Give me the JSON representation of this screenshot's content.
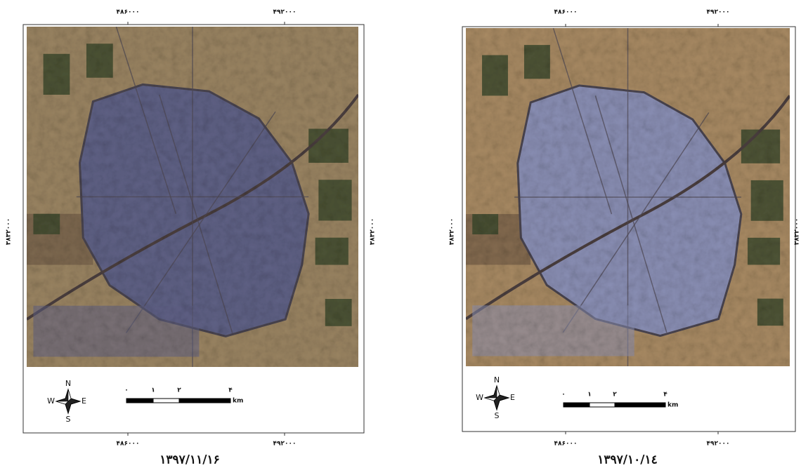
{
  "panels": [
    {
      "top_ticks": [
        "۴۸۶۰۰۰",
        "۴۹۲۰۰۰"
      ],
      "bottom_ticks": [
        "۴۸۶۰۰۰",
        "۴۹۲۰۰۰"
      ],
      "left_tick": "۳۸۳۲۰۰۰",
      "right_tick": "۳۸۳۲۰۰۰",
      "scale_labels": [
        "۰",
        "۱",
        "۲",
        "۴"
      ],
      "scale_unit": "km",
      "compass": {
        "n": "N",
        "s": "S",
        "e": "E",
        "w": "W"
      },
      "caption": "۱۳۹۷/۱۱/۱۶"
    },
    {
      "top_ticks": [
        "۴۸۶۰۰۰",
        "۴۹۲۰۰۰"
      ],
      "bottom_ticks": [
        "۴۸۶۰۰۰",
        "۴۹۲۰۰۰"
      ],
      "left_tick": "۳۸۳۲۰۰۰",
      "right_tick": "۳۸۳۲۰۰۰",
      "scale_labels": [
        "۰",
        "۱",
        "۲",
        "۴"
      ],
      "scale_unit": "km",
      "compass": {
        "n": "N",
        "s": "S",
        "e": "E",
        "w": "W"
      },
      "caption": "۱۳۹۷/۱۰/۱٤"
    }
  ]
}
